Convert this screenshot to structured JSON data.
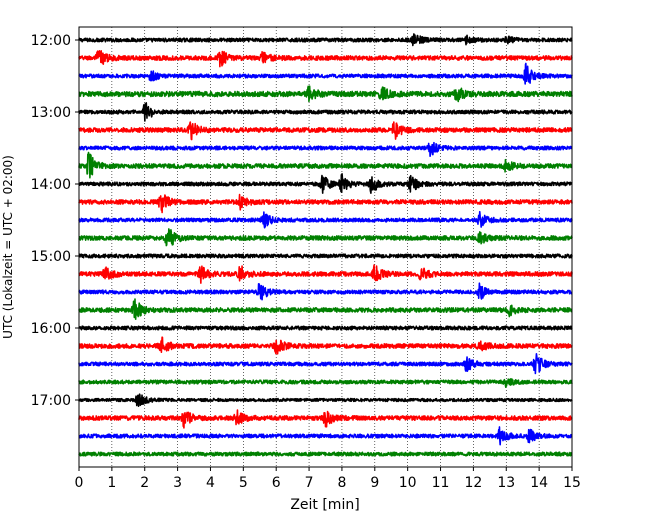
{
  "chart_data": {
    "type": "line",
    "xlabel": "Zeit  [min]",
    "ylabel": "UTC (Lokalzeit = UTC + 02:00)",
    "x_ticks": [
      "0",
      "1",
      "2",
      "3",
      "4",
      "5",
      "6",
      "7",
      "8",
      "9",
      "10",
      "11",
      "12",
      "13",
      "14",
      "15"
    ],
    "x_range": [
      0,
      15
    ],
    "y_ticks": [
      "12:00",
      "13:00",
      "14:00",
      "15:00",
      "16:00",
      "17:00"
    ],
    "y_tick_traces": [
      0,
      4,
      8,
      12,
      16,
      20
    ],
    "grid_x": "dotted vertical lines at each minute",
    "colors": [
      "#000000",
      "#ff0000",
      "#0000ff",
      "#008000"
    ],
    "traces": [
      {
        "start": "12:00",
        "color": "#000000",
        "amplitude": 0.1,
        "events": [
          {
            "t": 10.2,
            "a": 0.35
          },
          {
            "t": 11.8,
            "a": 0.2
          },
          {
            "t": 13.0,
            "a": 0.2
          }
        ]
      },
      {
        "start": "12:15",
        "color": "#ff0000",
        "amplitude": 0.12,
        "events": [
          {
            "t": 0.6,
            "a": 0.5
          },
          {
            "t": 4.3,
            "a": 0.45
          },
          {
            "t": 5.6,
            "a": 0.3
          }
        ]
      },
      {
        "start": "12:30",
        "color": "#0000ff",
        "amplitude": 0.1,
        "events": [
          {
            "t": 2.2,
            "a": 0.3
          },
          {
            "t": 13.6,
            "a": 0.6
          }
        ]
      },
      {
        "start": "12:45",
        "color": "#008000",
        "amplitude": 0.14,
        "events": [
          {
            "t": 7.0,
            "a": 0.35
          },
          {
            "t": 9.2,
            "a": 0.4
          },
          {
            "t": 11.5,
            "a": 0.4
          }
        ]
      },
      {
        "start": "13:00",
        "color": "#000000",
        "amplitude": 0.1,
        "events": [
          {
            "t": 2.0,
            "a": 0.55
          }
        ]
      },
      {
        "start": "13:15",
        "color": "#ff0000",
        "amplitude": 0.12,
        "events": [
          {
            "t": 3.4,
            "a": 0.5
          },
          {
            "t": 9.6,
            "a": 0.5
          }
        ]
      },
      {
        "start": "13:30",
        "color": "#0000ff",
        "amplitude": 0.1,
        "events": [
          {
            "t": 10.7,
            "a": 0.4
          }
        ]
      },
      {
        "start": "13:45",
        "color": "#008000",
        "amplitude": 0.12,
        "events": [
          {
            "t": 0.3,
            "a": 0.7
          },
          {
            "t": 13.0,
            "a": 0.3
          }
        ]
      },
      {
        "start": "14:00",
        "color": "#000000",
        "amplitude": 0.1,
        "events": [
          {
            "t": 7.4,
            "a": 0.5
          },
          {
            "t": 8.0,
            "a": 0.5
          },
          {
            "t": 8.9,
            "a": 0.5
          },
          {
            "t": 10.1,
            "a": 0.45
          }
        ]
      },
      {
        "start": "14:15",
        "color": "#ff0000",
        "amplitude": 0.12,
        "events": [
          {
            "t": 2.5,
            "a": 0.55
          },
          {
            "t": 4.9,
            "a": 0.4
          }
        ]
      },
      {
        "start": "14:30",
        "color": "#0000ff",
        "amplitude": 0.1,
        "events": [
          {
            "t": 5.6,
            "a": 0.45
          },
          {
            "t": 12.2,
            "a": 0.4
          }
        ]
      },
      {
        "start": "14:45",
        "color": "#008000",
        "amplitude": 0.12,
        "events": [
          {
            "t": 2.7,
            "a": 0.6
          },
          {
            "t": 12.2,
            "a": 0.3
          }
        ]
      },
      {
        "start": "15:00",
        "color": "#000000",
        "amplitude": 0.1,
        "events": []
      },
      {
        "start": "15:15",
        "color": "#ff0000",
        "amplitude": 0.12,
        "events": [
          {
            "t": 0.8,
            "a": 0.4
          },
          {
            "t": 3.7,
            "a": 0.4
          },
          {
            "t": 4.9,
            "a": 0.45
          },
          {
            "t": 9.0,
            "a": 0.45
          },
          {
            "t": 10.4,
            "a": 0.4
          }
        ]
      },
      {
        "start": "15:30",
        "color": "#0000ff",
        "amplitude": 0.1,
        "events": [
          {
            "t": 5.5,
            "a": 0.5
          },
          {
            "t": 12.2,
            "a": 0.45
          }
        ]
      },
      {
        "start": "15:45",
        "color": "#008000",
        "amplitude": 0.12,
        "events": [
          {
            "t": 1.7,
            "a": 0.55
          },
          {
            "t": 13.1,
            "a": 0.25
          }
        ]
      },
      {
        "start": "16:00",
        "color": "#000000",
        "amplitude": 0.1,
        "events": []
      },
      {
        "start": "16:15",
        "color": "#ff0000",
        "amplitude": 0.12,
        "events": [
          {
            "t": 2.5,
            "a": 0.45
          },
          {
            "t": 6.0,
            "a": 0.45
          },
          {
            "t": 12.2,
            "a": 0.25
          }
        ]
      },
      {
        "start": "16:30",
        "color": "#0000ff",
        "amplitude": 0.1,
        "events": [
          {
            "t": 11.8,
            "a": 0.4
          },
          {
            "t": 13.9,
            "a": 0.6
          }
        ]
      },
      {
        "start": "16:45",
        "color": "#008000",
        "amplitude": 0.1,
        "events": [
          {
            "t": 13.0,
            "a": 0.25
          }
        ]
      },
      {
        "start": "17:00",
        "color": "#000000",
        "amplitude": 0.08,
        "events": [
          {
            "t": 1.8,
            "a": 0.4
          }
        ]
      },
      {
        "start": "17:15",
        "color": "#ff0000",
        "amplitude": 0.12,
        "events": [
          {
            "t": 3.2,
            "a": 0.45
          },
          {
            "t": 4.8,
            "a": 0.4
          },
          {
            "t": 7.5,
            "a": 0.45
          }
        ]
      },
      {
        "start": "17:30",
        "color": "#0000ff",
        "amplitude": 0.1,
        "events": [
          {
            "t": 12.8,
            "a": 0.5
          },
          {
            "t": 13.7,
            "a": 0.35
          }
        ]
      },
      {
        "start": "17:45",
        "color": "#008000",
        "amplitude": 0.1,
        "events": []
      }
    ]
  }
}
